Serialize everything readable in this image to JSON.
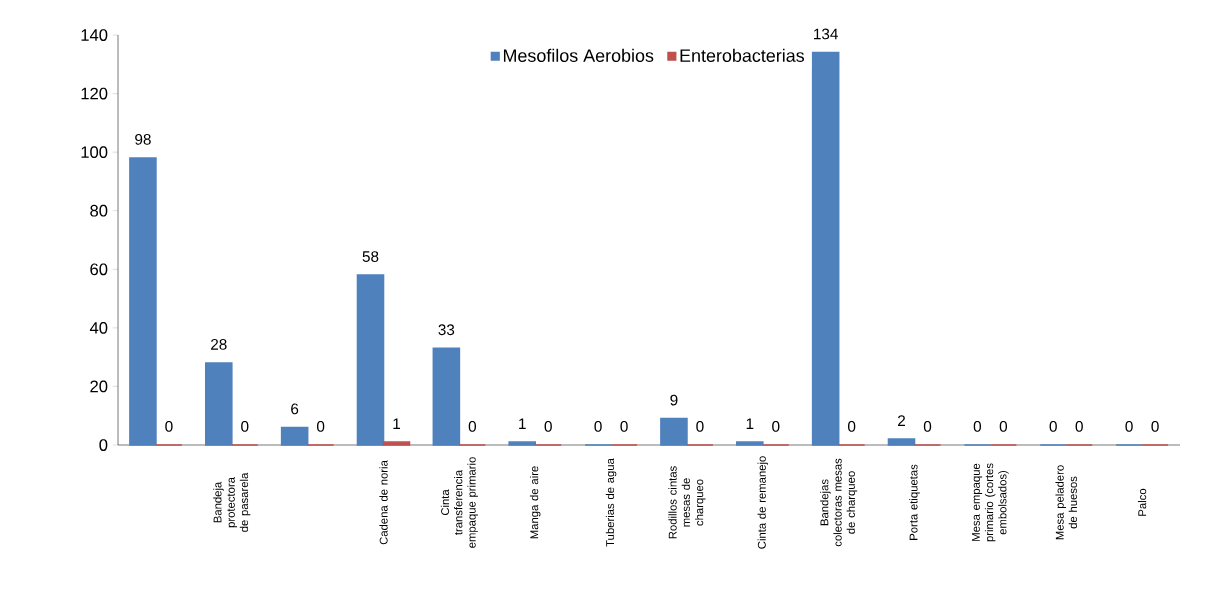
{
  "chart_data": {
    "type": "bar",
    "categories": [
      null,
      "Bandeja protectora de pasarela",
      null,
      "Cadena de noria",
      "Cinta transferencia empaque primario",
      "Manga de aire",
      "Tuberias de agua",
      "Rodillos cintas mesas de charqueo",
      "Cinta de remanejo",
      "Bandejas colectoras mesas de charqueo",
      "Porta etiquetas",
      "Mesa empaque primario (cortes embolsados)",
      "Mesa peladero de huesos",
      "Palco"
    ],
    "series": [
      {
        "name": "Mesofilos Aerobios",
        "color": "#4f81bd",
        "values": [
          98,
          28,
          6,
          58,
          33,
          1,
          0,
          9,
          1,
          134,
          2,
          0,
          0,
          0
        ]
      },
      {
        "name": "Enterobacterias",
        "color": "#c0504d",
        "values": [
          0,
          0,
          0,
          1,
          0,
          0,
          0,
          0,
          0,
          0,
          0,
          0,
          0,
          0
        ]
      }
    ],
    "ylim": [
      0,
      140
    ],
    "yticks": [
      0,
      20,
      40,
      60,
      80,
      100,
      120,
      140
    ],
    "data_labels": true,
    "grid": false,
    "legend": "top"
  }
}
